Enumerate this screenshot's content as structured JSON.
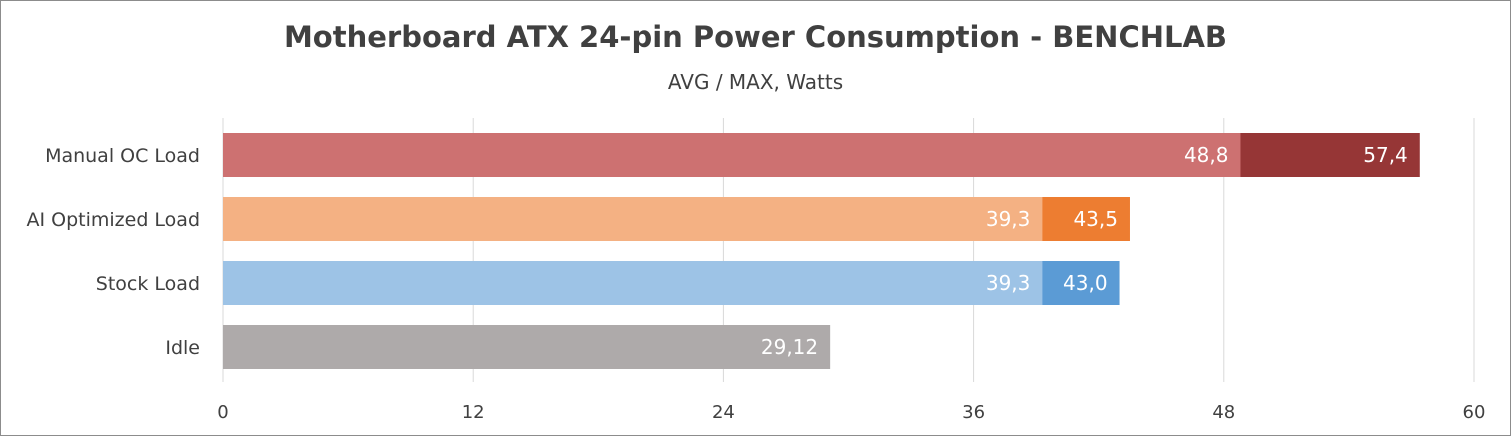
{
  "chart_data": {
    "type": "bar",
    "orientation": "horizontal",
    "stacked_overlay": true,
    "title": "Motherboard ATX 24-pin Power Consumption - BENCHLAB",
    "subtitle": "AVG / MAX, Watts",
    "xlim": [
      0,
      60
    ],
    "xticks": [
      "0",
      "12",
      "24",
      "36",
      "48",
      "60"
    ],
    "grid": true,
    "legend": false,
    "categories": [
      "Manual OC Load",
      "AI Optimized Load",
      "Stock Load",
      "Idle"
    ],
    "series": [
      {
        "values": [
          48.8,
          39.3,
          39.3,
          29.12
        ],
        "labels": [
          "48,8",
          "39,3",
          "39,3",
          "29,12"
        ],
        "colors": [
          "#CD7171",
          "#F4B183",
          "#9DC3E6",
          "#AEAAAA"
        ]
      },
      {
        "values": [
          57.4,
          43.5,
          43.0,
          null
        ],
        "labels": [
          "57,4",
          "43,5",
          "43,0",
          null
        ],
        "colors": [
          "#963636",
          "#ED7D31",
          "#5B9BD5",
          null
        ]
      }
    ]
  }
}
